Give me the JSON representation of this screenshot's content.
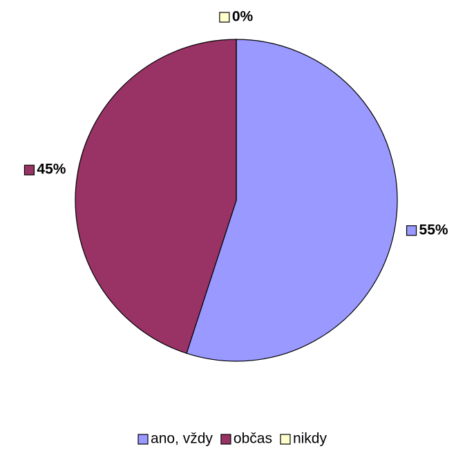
{
  "chart_data": {
    "type": "pie",
    "categories": [
      "ano, vždy",
      "občas",
      "nikdy"
    ],
    "values": [
      55,
      45,
      0
    ],
    "value_labels": [
      "55%",
      "45%",
      "0%"
    ],
    "colors": [
      "#9999ff",
      "#993366",
      "#ffffcc"
    ],
    "legend": "bottom"
  }
}
